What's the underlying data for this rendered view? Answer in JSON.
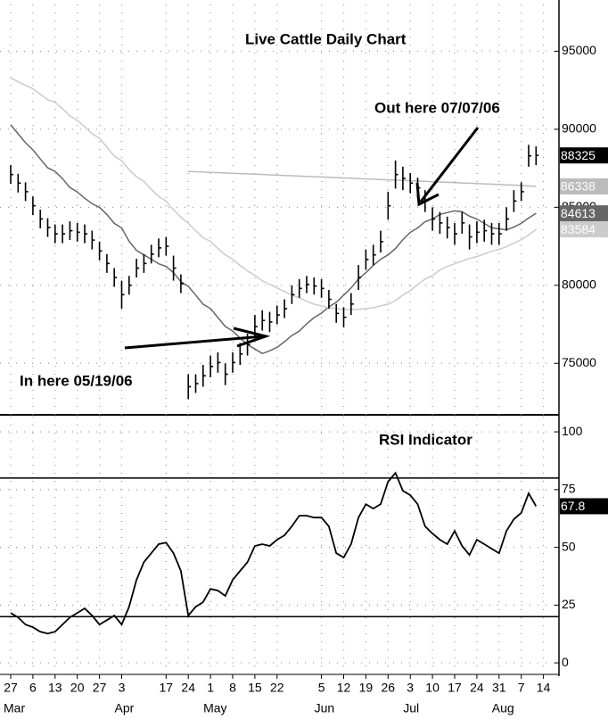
{
  "chart_data": [
    {
      "type": "ohlc",
      "title": "Live Cattle Daily Chart",
      "annotations": [
        "Out here 07/07/06",
        "In here 05/19/06"
      ],
      "color": "#000000",
      "high": [
        87700,
        87150,
        86600,
        85700,
        84850,
        84300,
        83900,
        83900,
        84100,
        84000,
        83900,
        83500,
        82800,
        82000,
        81100,
        80300,
        80600,
        81700,
        82000,
        82600,
        83000,
        83100,
        81900,
        80700,
        74300,
        74300,
        74900,
        75500,
        75700,
        75000,
        75700,
        76300,
        76900,
        78100,
        78400,
        78300,
        78700,
        79100,
        80000,
        80400,
        80600,
        80500,
        80400,
        79700,
        78800,
        78600,
        79500,
        81300,
        82300,
        82600,
        83500,
        86000,
        88000,
        87600,
        87200,
        86900,
        86100,
        85000,
        84700,
        84400,
        84000,
        84700,
        83900,
        84100,
        84200,
        84000,
        84000,
        85000,
        86100,
        86600,
        89000,
        88900,
        null,
        null,
        null
      ],
      "low": [
        86500,
        85950,
        85400,
        84500,
        83650,
        83100,
        82700,
        82700,
        82900,
        82800,
        82700,
        82300,
        81600,
        80800,
        79900,
        78500,
        79400,
        80500,
        80800,
        81400,
        81800,
        81900,
        80300,
        79500,
        72700,
        73100,
        73500,
        74100,
        74400,
        73600,
        74400,
        74900,
        75500,
        76600,
        77100,
        77000,
        77500,
        77900,
        78800,
        79200,
        79500,
        79400,
        79200,
        78500,
        77600,
        77300,
        78100,
        79700,
        81000,
        81300,
        82100,
        84200,
        86200,
        86100,
        85900,
        85600,
        84700,
        83500,
        83300,
        83000,
        82600,
        83300,
        82300,
        82700,
        82800,
        82600,
        82600,
        83500,
        84700,
        85400,
        87600,
        87700,
        null,
        null,
        null
      ],
      "close": [
        87100,
        86550,
        86000,
        85100,
        84250,
        83700,
        83300,
        83300,
        83500,
        83400,
        83300,
        82900,
        82200,
        81400,
        80500,
        79400,
        80000,
        81100,
        81400,
        82000,
        82400,
        82500,
        81100,
        80100,
        73500,
        73700,
        74200,
        74800,
        75050,
        74300,
        75050,
        75600,
        76200,
        77350,
        77750,
        77650,
        78100,
        78500,
        79400,
        79800,
        80050,
        79950,
        79800,
        79100,
        78200,
        77950,
        78800,
        80500,
        81650,
        81950,
        82800,
        85100,
        87100,
        86850,
        86550,
        86250,
        85400,
        84250,
        84000,
        83700,
        83300,
        84000,
        83100,
        83400,
        83500,
        83300,
        83300,
        84250,
        85400,
        86000,
        88300,
        88325,
        null,
        null,
        null
      ],
      "series": [
        {
          "color": "#bbbbbb",
          "values": [
            null,
            null,
            null,
            null,
            null,
            null,
            null,
            null,
            null,
            null,
            null,
            null,
            null,
            null,
            null,
            null,
            null,
            null,
            null,
            null,
            null,
            null,
            null,
            null,
            87300,
            87280,
            87260,
            87240,
            87220,
            87200,
            87180,
            87160,
            87140,
            87120,
            87100,
            87080,
            87060,
            87040,
            87020,
            87000,
            86980,
            86960,
            86940,
            86920,
            86900,
            86880,
            86860,
            86840,
            86820,
            86800,
            86780,
            86760,
            86740,
            86720,
            86700,
            86680,
            86660,
            86640,
            86620,
            86600,
            86580,
            86560,
            86540,
            86520,
            86500,
            86480,
            86460,
            86440,
            86420,
            86400,
            86370,
            86338,
            null,
            null,
            null
          ]
        },
        {
          "color": "#666666",
          "values": [
            90290,
            89710,
            89140,
            88680,
            88100,
            87530,
            87300,
            86840,
            86270,
            85980,
            85580,
            85230,
            85000,
            84540,
            83970,
            83680,
            82820,
            82240,
            81950,
            81670,
            81380,
            81210,
            80810,
            80230,
            79940,
            79370,
            78790,
            78510,
            77930,
            77360,
            77070,
            76610,
            76210,
            75920,
            75630,
            75800,
            76030,
            76380,
            76780,
            77070,
            77530,
            77930,
            78220,
            78620,
            78910,
            79370,
            79830,
            80400,
            80810,
            81270,
            81670,
            81950,
            82360,
            82930,
            83390,
            83680,
            84080,
            84250,
            84540,
            84660,
            84770,
            84710,
            84430,
            84250,
            83970,
            83680,
            83620,
            83560,
            83730,
            83970,
            84310,
            84613,
            null,
            null,
            null
          ]
        },
        {
          "color": "#cccccc",
          "values": [
            93280,
            93050,
            92820,
            92590,
            92240,
            91900,
            91720,
            91320,
            90860,
            90570,
            90170,
            89710,
            89430,
            88850,
            88280,
            87990,
            87410,
            86950,
            86670,
            86150,
            85690,
            85400,
            84830,
            84370,
            83970,
            83510,
            83050,
            82820,
            82360,
            81950,
            81670,
            81270,
            80920,
            80630,
            80290,
            80060,
            79830,
            79600,
            79370,
            79200,
            78970,
            78790,
            78680,
            78560,
            78510,
            78450,
            78450,
            78450,
            78510,
            78560,
            78680,
            78790,
            79020,
            79370,
            79660,
            80060,
            80400,
            80630,
            80980,
            81210,
            81380,
            81550,
            81720,
            81840,
            82010,
            82180,
            82300,
            82470,
            82700,
            82930,
            83220,
            83584,
            null,
            null,
            null
          ]
        }
      ],
      "ylim": [
        71700,
        98000
      ],
      "yticks": [
        75000,
        80000,
        85000,
        90000,
        95000
      ],
      "grid": true
    },
    {
      "type": "line",
      "title": "RSI Indicator",
      "categories": [
        "27",
        null,
        null,
        "6",
        null,
        null,
        "13",
        null,
        null,
        "20",
        null,
        null,
        "27",
        null,
        null,
        "3",
        null,
        null,
        null,
        null,
        null,
        "17",
        null,
        null,
        "24",
        null,
        null,
        "1",
        null,
        null,
        "8",
        null,
        null,
        "15",
        null,
        null,
        "22",
        null,
        null,
        null,
        null,
        null,
        "5",
        null,
        null,
        "12",
        null,
        null,
        "19",
        null,
        null,
        "26",
        null,
        null,
        "3",
        null,
        null,
        "10",
        null,
        null,
        "17",
        null,
        null,
        "24",
        null,
        null,
        "31",
        null,
        null,
        "7",
        null,
        null,
        "14",
        null,
        null
      ],
      "month_labels": [
        "Mar",
        null,
        null,
        null,
        null,
        null,
        null,
        null,
        null,
        null,
        null,
        null,
        null,
        null,
        null,
        "Apr",
        null,
        null,
        null,
        null,
        null,
        null,
        null,
        null,
        null,
        null,
        null,
        "May",
        null,
        null,
        null,
        null,
        null,
        null,
        null,
        null,
        null,
        null,
        null,
        null,
        null,
        null,
        "Jun",
        null,
        null,
        null,
        null,
        null,
        null,
        null,
        null,
        null,
        null,
        null,
        "Jul",
        null,
        null,
        null,
        null,
        null,
        null,
        null,
        null,
        null,
        null,
        null,
        "Aug",
        null,
        null,
        null,
        null,
        null,
        null,
        null,
        null
      ],
      "color": "#000000",
      "values": [
        21.6,
        19.7,
        16.6,
        15.4,
        13.5,
        12.7,
        13.5,
        16.6,
        19.7,
        21.6,
        23.6,
        20.5,
        16.6,
        18.5,
        20.5,
        16.6,
        24.3,
        35.9,
        43.6,
        47.5,
        51.4,
        52.1,
        47.5,
        39.8,
        20.5,
        24.3,
        26.3,
        32,
        31.3,
        29,
        35.9,
        39.8,
        43.6,
        50.6,
        51.4,
        50.6,
        53.3,
        55.2,
        59.1,
        63.7,
        63.7,
        62.9,
        62.9,
        59.1,
        47.5,
        45.6,
        51.4,
        62.9,
        68.7,
        66.8,
        68.7,
        78.4,
        82.2,
        74.5,
        72.6,
        68.7,
        59.1,
        56,
        53.3,
        51.4,
        57.1,
        50.6,
        46.7,
        53.3,
        51.4,
        49.4,
        47.5,
        57.1,
        62.2,
        64.9,
        73.4,
        67.8,
        null,
        null,
        null
      ],
      "levels": [
        20,
        80
      ],
      "ylim": [
        -4.6,
        106.6
      ],
      "yticks": [
        0,
        25,
        50,
        75,
        100
      ],
      "grid": true
    }
  ]
}
